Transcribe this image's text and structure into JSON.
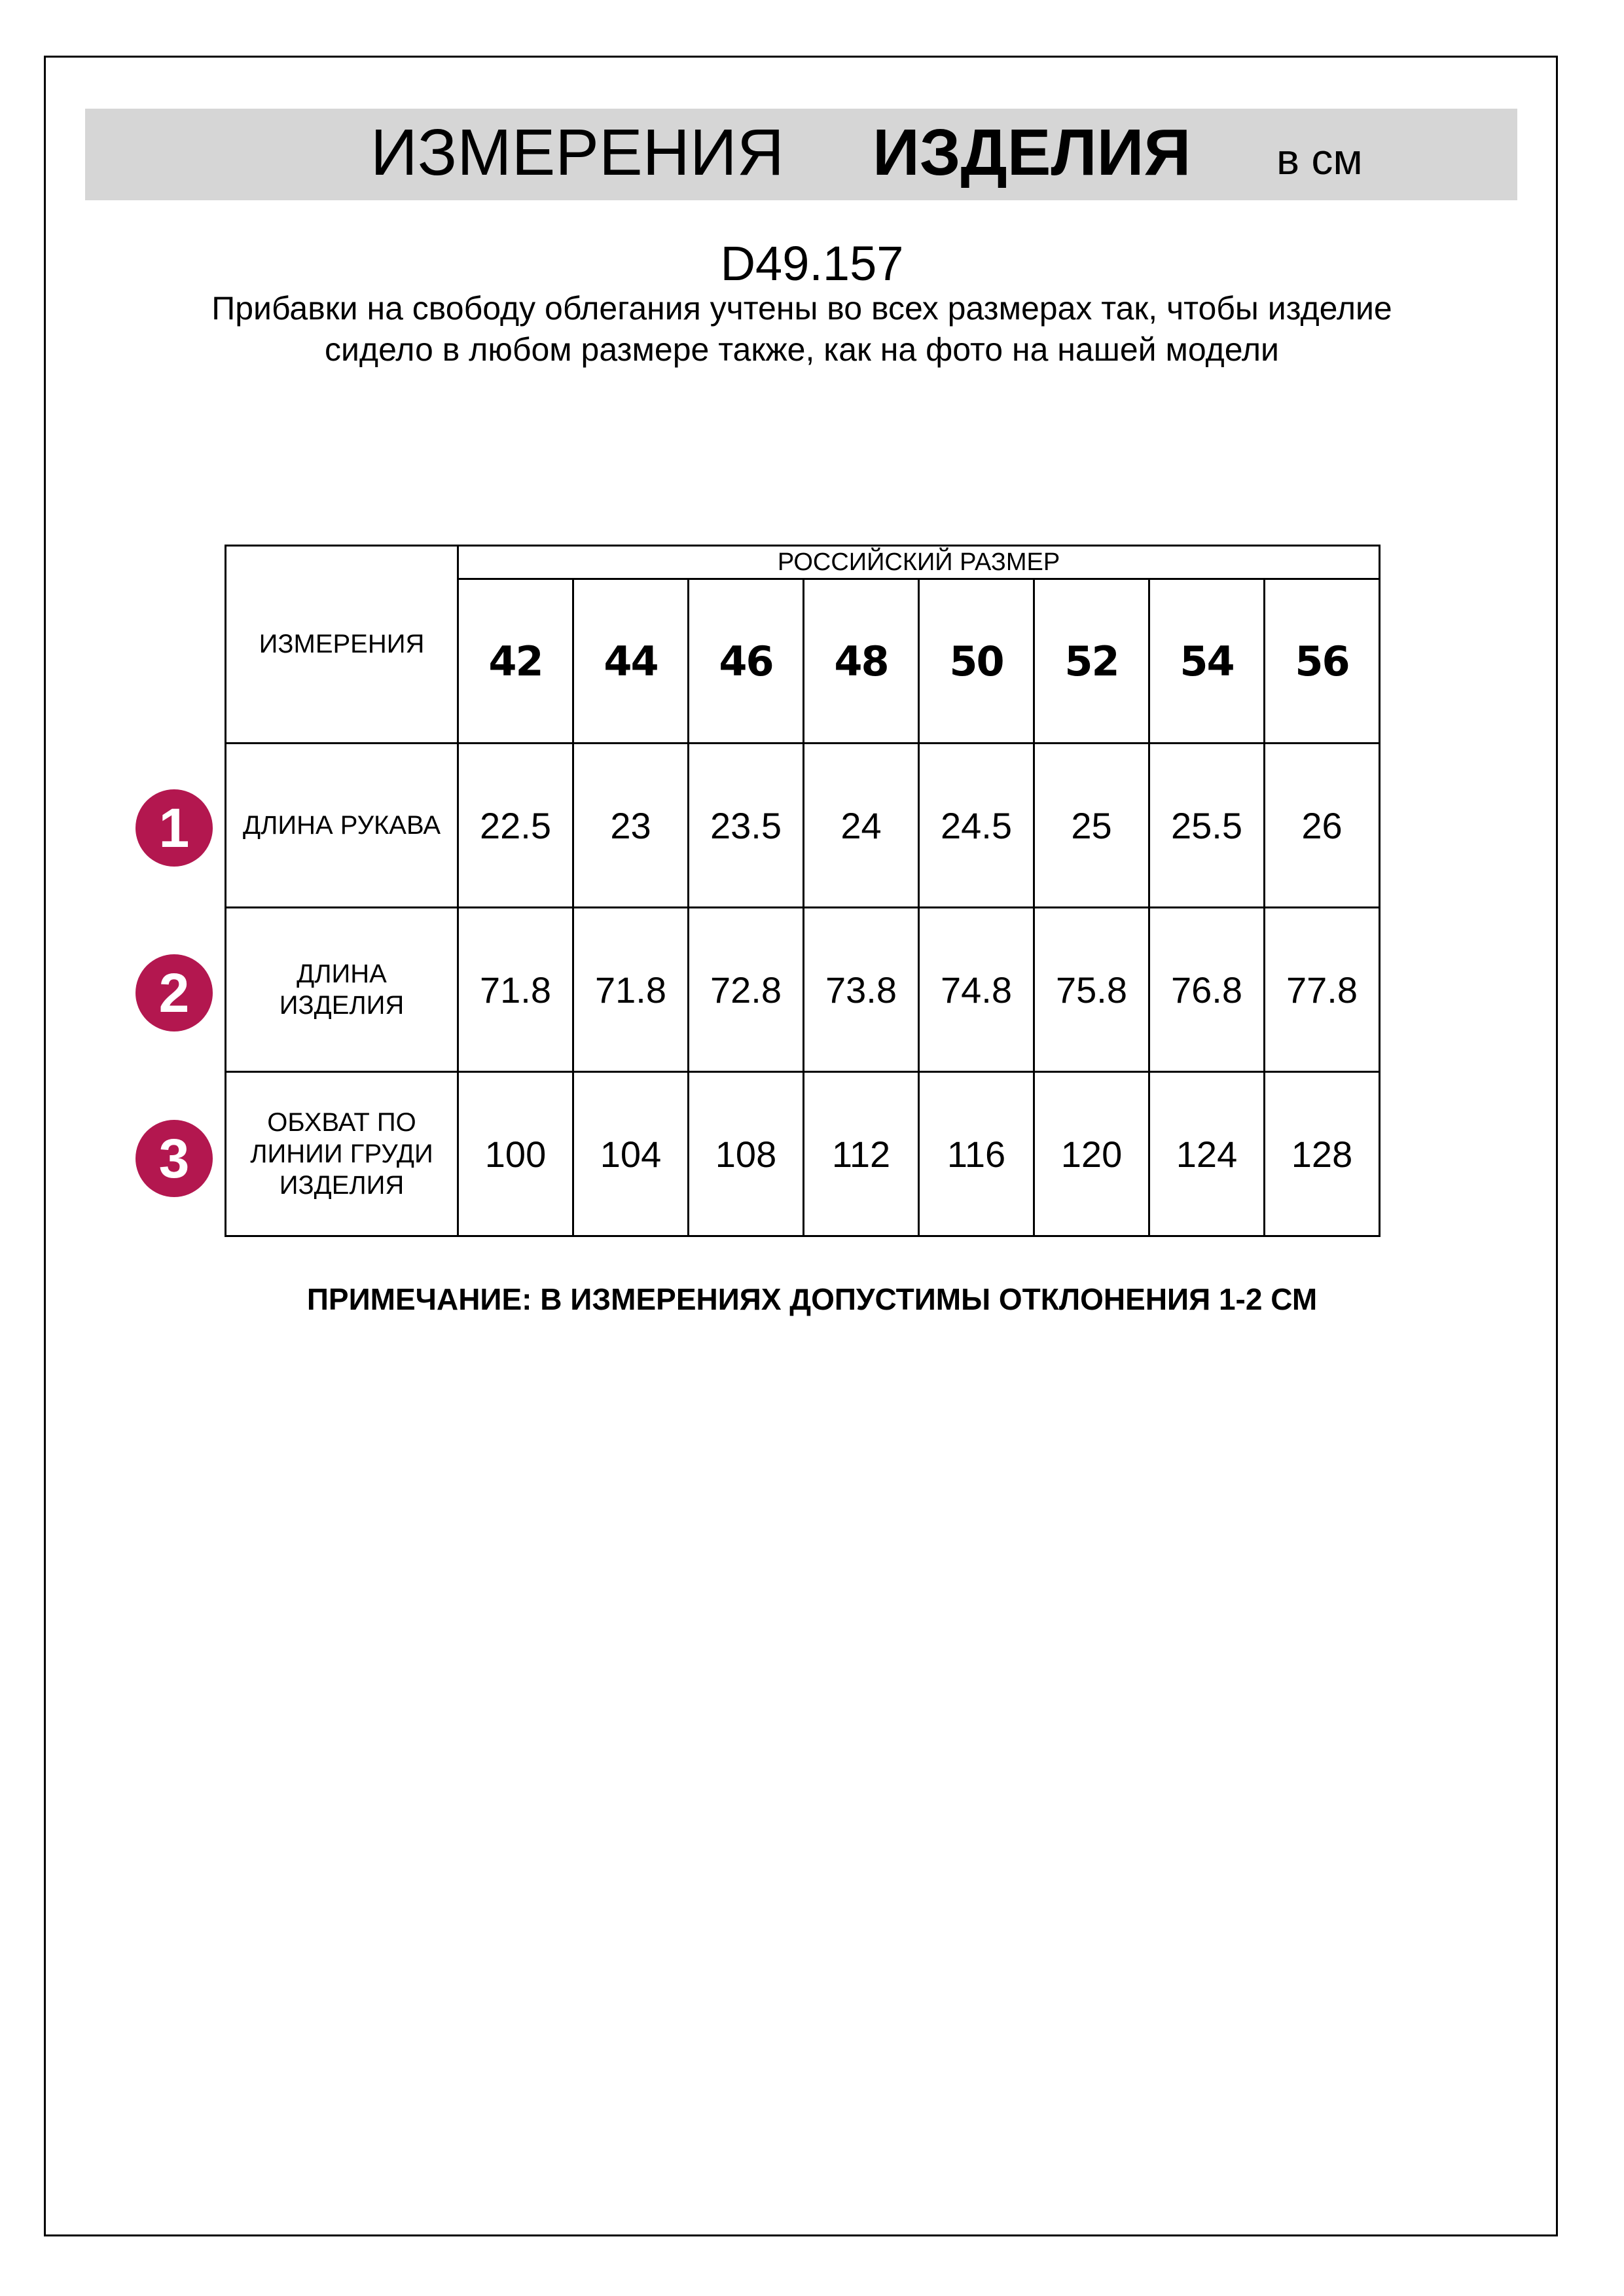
{
  "header": {
    "title_part1": "ИЗМЕРЕНИЯ",
    "title_part2": "ИЗДЕЛИЯ",
    "unit": "в см"
  },
  "product_code": "D49.157",
  "description": "Прибавки на свободу облегания учтены во всех размерах так, чтобы изделие сидело в любом размере также, как на фото на нашей модели",
  "table": {
    "corner_label": "ИЗМЕРЕНИЯ",
    "size_group_label": "РОССИЙСКИЙ РАЗМЕР",
    "sizes": [
      "42",
      "44",
      "46",
      "48",
      "50",
      "52",
      "54",
      "56"
    ],
    "rows": [
      {
        "badge": "1",
        "label": "ДЛИНА РУКАВА",
        "values": [
          "22.5",
          "23",
          "23.5",
          "24",
          "24.5",
          "25",
          "25.5",
          "26"
        ]
      },
      {
        "badge": "2",
        "label": "ДЛИНА ИЗДЕЛИЯ",
        "values": [
          "71.8",
          "71.8",
          "72.8",
          "73.8",
          "74.8",
          "75.8",
          "76.8",
          "77.8"
        ]
      },
      {
        "badge": "3",
        "label": "ОБХВАТ ПО ЛИНИИ ГРУДИ ИЗДЕЛИЯ",
        "values": [
          "100",
          "104",
          "108",
          "112",
          "116",
          "120",
          "124",
          "128"
        ]
      }
    ]
  },
  "note": "ПРИМЕЧАНИЕ: В ИЗМЕРЕНИЯХ ДОПУСТИМЫ ОТКЛОНЕНИЯ 1-2 СМ",
  "colors": {
    "badge": "#b3174f",
    "header_band": "#d6d6d6"
  }
}
